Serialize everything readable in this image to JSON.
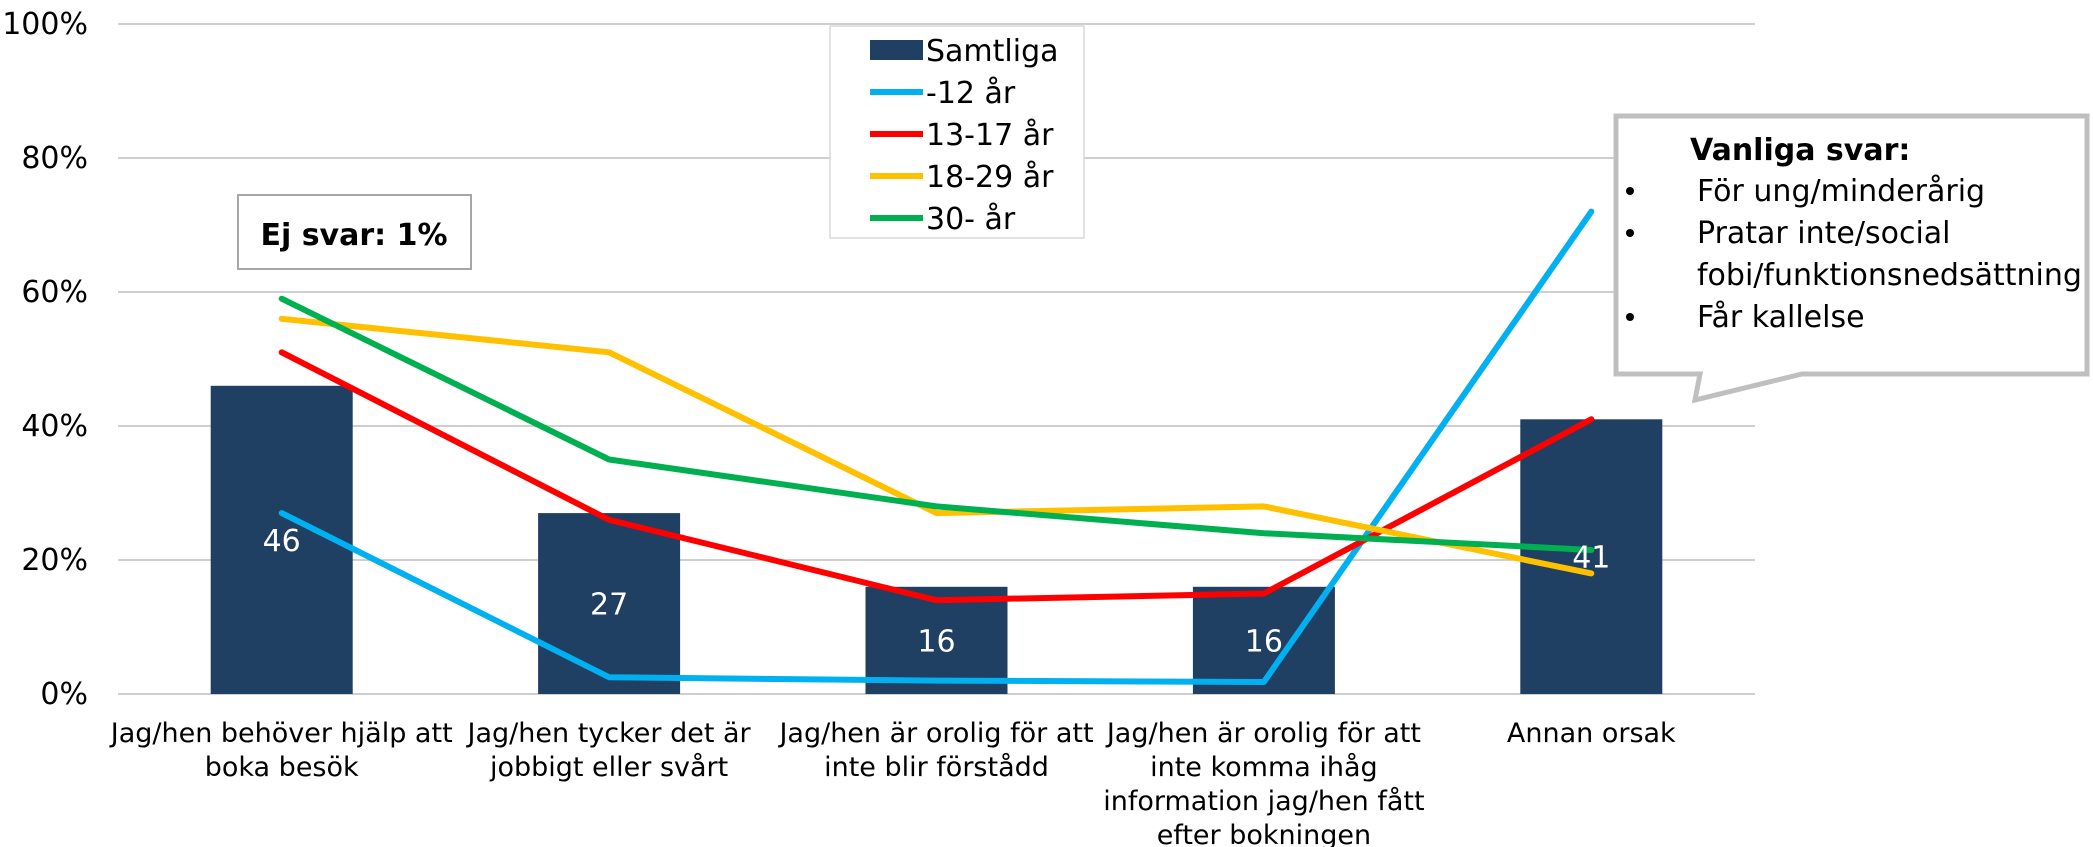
{
  "chart_data": {
    "type": "bar",
    "ylim": [
      0,
      100
    ],
    "yticks": [
      "0%",
      "20%",
      "40%",
      "60%",
      "80%",
      "100%"
    ],
    "categories": [
      [
        "Jag/hen behöver hjälp att",
        "boka besök"
      ],
      [
        "Jag/hen tycker det är",
        "jobbigt eller svårt"
      ],
      [
        "Jag/hen är orolig för att",
        "inte blir förstådd"
      ],
      [
        "Jag/hen är orolig för att",
        "inte komma ihåg",
        "information jag/hen fått",
        "efter bokningen"
      ],
      [
        "Annan orsak"
      ]
    ],
    "bars": {
      "name": "Samtliga",
      "color": "#1f3f63",
      "values": [
        46,
        27,
        16,
        16,
        41
      ],
      "labels": [
        "46",
        "27",
        "16",
        "16",
        "41"
      ]
    },
    "lines": [
      {
        "name": "-12 år",
        "color": "#00b0f0",
        "values": [
          27,
          2.5,
          2,
          1.8,
          72
        ]
      },
      {
        "name": "13-17 år",
        "color": "#ff0000",
        "values": [
          51,
          26,
          14,
          15,
          41
        ]
      },
      {
        "name": "18-29 år",
        "color": "#ffc000",
        "values": [
          56,
          51,
          27,
          28,
          18
        ]
      },
      {
        "name": "30-  år",
        "color": "#00b050",
        "values": [
          59,
          35,
          28,
          24,
          21.5
        ]
      }
    ],
    "legend_position": "top-center",
    "grid": true,
    "annotations": {
      "ej_svar": "Ej svar: 1%",
      "callout_title": "Vanliga svar:",
      "callout_items": [
        [
          "För ung/minderårig"
        ],
        [
          "Pratar inte/social",
          "fobi/funktionsnedsättning"
        ],
        [
          "Får kallelse"
        ]
      ]
    }
  }
}
